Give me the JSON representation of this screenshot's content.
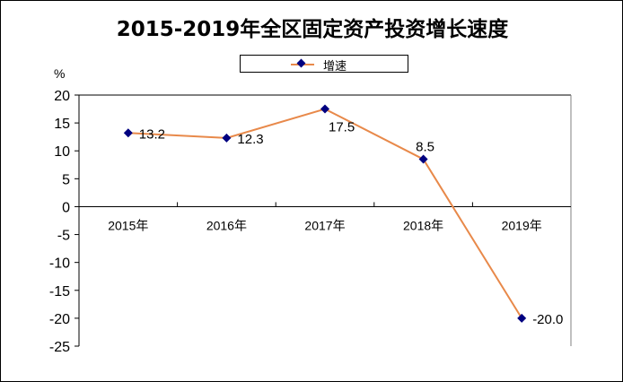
{
  "chart_data": {
    "type": "line",
    "title": "2015-2019年全区固定资产投资增长速度",
    "ylabel": "%",
    "xlabel": "",
    "categories": [
      "2015年",
      "2016年",
      "2017年",
      "2018年",
      "2019年"
    ],
    "series": [
      {
        "name": "增速",
        "values": [
          13.2,
          12.3,
          17.5,
          8.5,
          -20.0
        ],
        "labels": [
          "13.2",
          "12.3",
          "17.5",
          "8.5",
          "-20.0"
        ],
        "color": "#e8894a",
        "marker_color": "#000080"
      }
    ],
    "ylim": [
      -25,
      20
    ],
    "yticks": [
      20,
      15,
      10,
      5,
      0,
      -5,
      -10,
      -15,
      -20,
      -25
    ],
    "legend": "top-center",
    "grid": false
  }
}
